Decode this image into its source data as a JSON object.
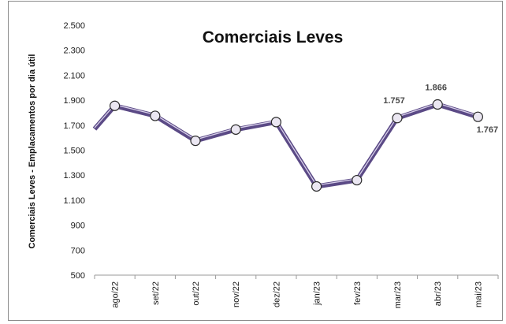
{
  "chart_data": {
    "type": "line",
    "title": "Comerciais Leves",
    "xlabel": "",
    "ylabel": "Comerciais Leves - Emplacamentos por dia útil",
    "ylim": [
      500,
      2500
    ],
    "yticks": [
      "500",
      "700",
      "900",
      "1.100",
      "1.300",
      "1.500",
      "1.700",
      "1.900",
      "2.100",
      "2.300",
      "2.500"
    ],
    "yticks_values": [
      500,
      700,
      900,
      1100,
      1300,
      1500,
      1700,
      1900,
      2100,
      2300,
      2500
    ],
    "categories": [
      "ago/22",
      "set/22",
      "out/22",
      "nov/22",
      "dez/22",
      "jan/23",
      "fev/23",
      "mar/23",
      "abr/23",
      "mai/23"
    ],
    "series": [
      {
        "values": [
          1855,
          1775,
          1575,
          1665,
          1725,
          1210,
          1260,
          1757,
          1866,
          1767
        ],
        "color": "#5b4a86",
        "leading_value": 1670
      }
    ],
    "data_labels": [
      {
        "index": 7,
        "text": "1.757"
      },
      {
        "index": 8,
        "text": "1.866"
      },
      {
        "index": 9,
        "text": "1.767"
      }
    ],
    "grid": false,
    "legend": "none"
  }
}
